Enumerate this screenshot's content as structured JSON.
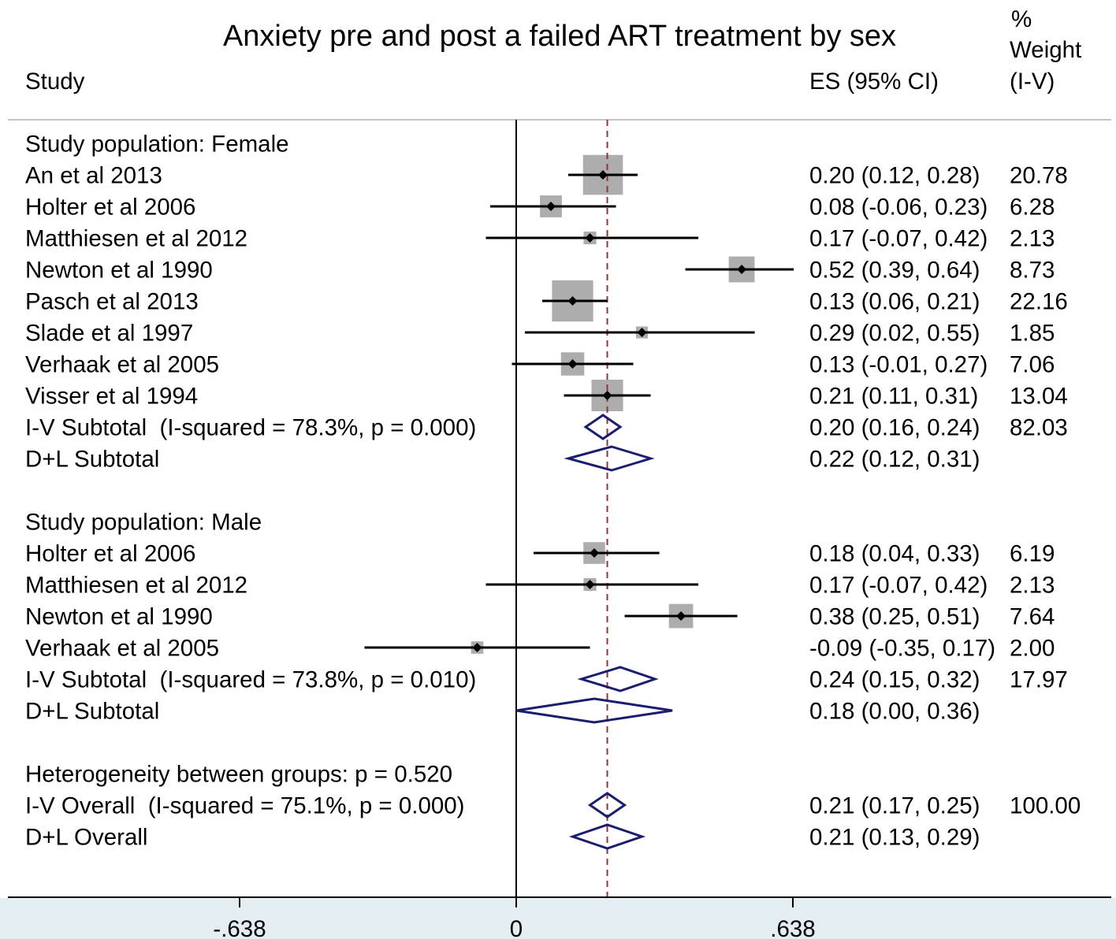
{
  "chart_data": {
    "type": "scatter",
    "title": "Anxiety pre and post a failed ART treatment by sex",
    "headers": {
      "study": "Study",
      "es_ci": "ES (95% CI)",
      "weight": [
        "%",
        "Weight",
        "(I-V)"
      ]
    },
    "x_axis": {
      "ticks": [
        {
          "value": -0.638,
          "label": "-.638"
        },
        {
          "value": 0,
          "label": "0"
        },
        {
          "value": 0.638,
          "label": ".638"
        }
      ]
    },
    "reference_lines": {
      "null_effect": 0,
      "overall_estimate": 0.21
    },
    "groups": [
      {
        "label": "Study population: Female",
        "studies": [
          {
            "label": "An et al 2013",
            "es": 0.2,
            "ci_low": 0.12,
            "ci_high": 0.28,
            "es_ci": "0.20 (0.12, 0.28)",
            "weight": "20.78"
          },
          {
            "label": "Holter et al 2006",
            "es": 0.08,
            "ci_low": -0.06,
            "ci_high": 0.23,
            "es_ci": "0.08 (-0.06, 0.23)",
            "weight": "6.28"
          },
          {
            "label": "Matthiesen et al 2012",
            "es": 0.17,
            "ci_low": -0.07,
            "ci_high": 0.42,
            "es_ci": "0.17 (-0.07, 0.42)",
            "weight": "2.13"
          },
          {
            "label": "Newton et al 1990",
            "es": 0.52,
            "ci_low": 0.39,
            "ci_high": 0.64,
            "es_ci": "0.52 (0.39, 0.64)",
            "weight": "8.73"
          },
          {
            "label": "Pasch et al 2013",
            "es": 0.13,
            "ci_low": 0.06,
            "ci_high": 0.21,
            "es_ci": "0.13 (0.06, 0.21)",
            "weight": "22.16"
          },
          {
            "label": "Slade et al 1997",
            "es": 0.29,
            "ci_low": 0.02,
            "ci_high": 0.55,
            "es_ci": "0.29 (0.02, 0.55)",
            "weight": "1.85"
          },
          {
            "label": "Verhaak et al 2005",
            "es": 0.13,
            "ci_low": -0.01,
            "ci_high": 0.27,
            "es_ci": "0.13 (-0.01, 0.27)",
            "weight": "7.06"
          },
          {
            "label": "Visser et al 1994",
            "es": 0.21,
            "ci_low": 0.11,
            "ci_high": 0.31,
            "es_ci": "0.21 (0.11, 0.31)",
            "weight": "13.04"
          }
        ],
        "iv_subtotal": {
          "label": "I-V Subtotal  (I-squared = 78.3%, p = 0.000)",
          "es": 0.2,
          "ci_low": 0.16,
          "ci_high": 0.24,
          "es_ci": "0.20 (0.16, 0.24)",
          "weight": "82.03"
        },
        "dl_subtotal": {
          "label": "D+L Subtotal",
          "es": 0.22,
          "ci_low": 0.12,
          "ci_high": 0.31,
          "es_ci": "0.22 (0.12, 0.31)"
        }
      },
      {
        "label": "Study population: Male",
        "studies": [
          {
            "label": "Holter et al 2006",
            "es": 0.18,
            "ci_low": 0.04,
            "ci_high": 0.33,
            "es_ci": "0.18 (0.04, 0.33)",
            "weight": "6.19"
          },
          {
            "label": "Matthiesen et al 2012",
            "es": 0.17,
            "ci_low": -0.07,
            "ci_high": 0.42,
            "es_ci": "0.17 (-0.07, 0.42)",
            "weight": "2.13"
          },
          {
            "label": "Newton et al 1990",
            "es": 0.38,
            "ci_low": 0.25,
            "ci_high": 0.51,
            "es_ci": "0.38 (0.25, 0.51)",
            "weight": "7.64"
          },
          {
            "label": "Verhaak et al 2005",
            "es": -0.09,
            "ci_low": -0.35,
            "ci_high": 0.17,
            "es_ci": "-0.09 (-0.35, 0.17)",
            "weight": "2.00"
          }
        ],
        "iv_subtotal": {
          "label": "I-V Subtotal  (I-squared = 73.8%, p = 0.010)",
          "es": 0.24,
          "ci_low": 0.15,
          "ci_high": 0.32,
          "es_ci": "0.24 (0.15, 0.32)",
          "weight": "17.97"
        },
        "dl_subtotal": {
          "label": "D+L Subtotal",
          "es": 0.18,
          "ci_low": 0.0,
          "ci_high": 0.36,
          "es_ci": "0.18 (0.00, 0.36)"
        }
      }
    ],
    "heterogeneity": "Heterogeneity between groups: p = 0.520",
    "iv_overall": {
      "label": "I-V Overall  (I-squared = 75.1%, p = 0.000)",
      "es": 0.21,
      "ci_low": 0.17,
      "ci_high": 0.25,
      "es_ci": "0.21 (0.17, 0.25)",
      "weight": "100.00"
    },
    "dl_overall": {
      "label": "D+L Overall",
      "es": 0.21,
      "ci_low": 0.13,
      "ci_high": 0.29,
      "es_ci": "0.21 (0.13, 0.29)"
    },
    "colors": {
      "study_box": "#adadad",
      "ci_line": "#000000",
      "point_marker": "#000000",
      "pooled_diamond": "#1b1e6e",
      "overall_line": "#90353b",
      "axis_band": "#e4edf1"
    }
  }
}
